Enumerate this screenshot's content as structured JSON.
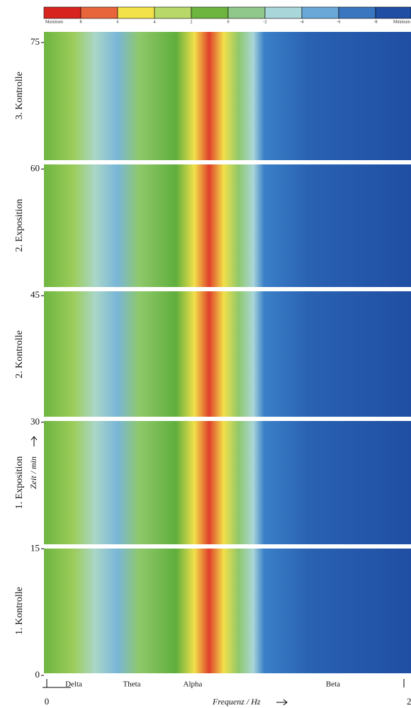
{
  "colorbar": {
    "max_label": "Maximum",
    "min_label": "Minimum",
    "ticks": [
      8,
      6,
      4,
      2,
      0,
      -2,
      -4,
      -6,
      -8
    ]
  },
  "y_axis": {
    "label": "Zeit / min",
    "ticks": [
      75,
      60,
      45,
      30,
      15,
      0
    ]
  },
  "panels": [
    "3. Kontrolle",
    "2. Exposition",
    "2. Kontrolle",
    "1. Exposition",
    "1. Kontrolle"
  ],
  "bands": [
    "Delta",
    "Theta",
    "Alpha",
    "Beta"
  ],
  "x_axis": {
    "label": "Frequenz / Hz",
    "start": "0",
    "end": "2"
  }
}
